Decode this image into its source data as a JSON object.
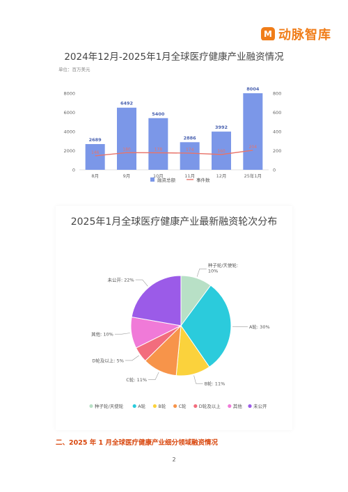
{
  "brand": {
    "mark": "M",
    "name": "动脉智库"
  },
  "section_heading": "二、2025 年 1 月全球医疗健康产业细分领域融资情况",
  "page_number": "2",
  "colors": {
    "bar": "#7b97e8",
    "line": "#e8746a",
    "brand": "#f07d19",
    "pie": [
      "#b8e0c6",
      "#2bcbdc",
      "#fbd23c",
      "#f7944a",
      "#f26d7d",
      "#f07ad8",
      "#9b5be8"
    ]
  },
  "chart_data": [
    {
      "type": "bar",
      "title": "2024年12月-2025年1月全球医疗健康产业融资情况",
      "unit_label": "单位：百万美元",
      "categories": [
        "8月",
        "9月",
        "10月",
        "11月",
        "12月",
        "25年1月"
      ],
      "series": [
        {
          "name": "融资总额",
          "type": "bar",
          "axis": "left",
          "values": [
            2689,
            6492,
            5400,
            2886,
            3992,
            8004
          ]
        },
        {
          "name": "事件数",
          "type": "line",
          "axis": "right",
          "values": [
            146,
            180,
            178,
            174,
            160,
            204
          ]
        }
      ],
      "y_left": {
        "min": 0,
        "max": 8000,
        "ticks": [
          0,
          2000,
          4000,
          6000,
          8000
        ]
      },
      "y_right": {
        "min": 0,
        "max": 800,
        "ticks": [
          0,
          200,
          400,
          600,
          800
        ]
      },
      "legend": [
        "融资总额",
        "事件数"
      ],
      "legend_position": "bottom",
      "grid": false
    },
    {
      "type": "pie",
      "title": "2025年1月全球医疗健康产业最新融资轮次分布",
      "slices": [
        {
          "label": "种子轮/天使轮",
          "value": 10,
          "text": "种子轮/天使轮:\n10%"
        },
        {
          "label": "A轮",
          "value": 30,
          "text": "A轮: 30%"
        },
        {
          "label": "B轮",
          "value": 11,
          "text": "B轮: 11%"
        },
        {
          "label": "C轮",
          "value": 11,
          "text": "C轮: 11%"
        },
        {
          "label": "D轮及以上",
          "value": 5,
          "text": "D轮及以上: 5%"
        },
        {
          "label": "其他",
          "value": 10,
          "text": "其他: 10%"
        },
        {
          "label": "未公开",
          "value": 22,
          "text": "未公开: 22%"
        }
      ],
      "legend_position": "bottom"
    }
  ]
}
